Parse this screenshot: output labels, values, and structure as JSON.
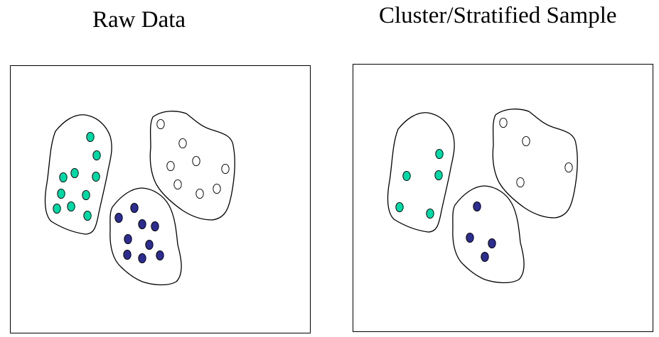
{
  "panels": [
    {
      "title": "Raw Data"
    },
    {
      "title": "Cluster/Stratified Sample"
    }
  ],
  "colors": {
    "green": "#00d9a6",
    "navy": "#2d2d8f",
    "white": "#ffffff",
    "outline": "#000000"
  },
  "clusters": {
    "raw": {
      "green_count": 11,
      "white_count": 9,
      "navy_count": 10
    },
    "sample": {
      "green_count": 5,
      "white_count": 4,
      "navy_count": 4
    }
  }
}
